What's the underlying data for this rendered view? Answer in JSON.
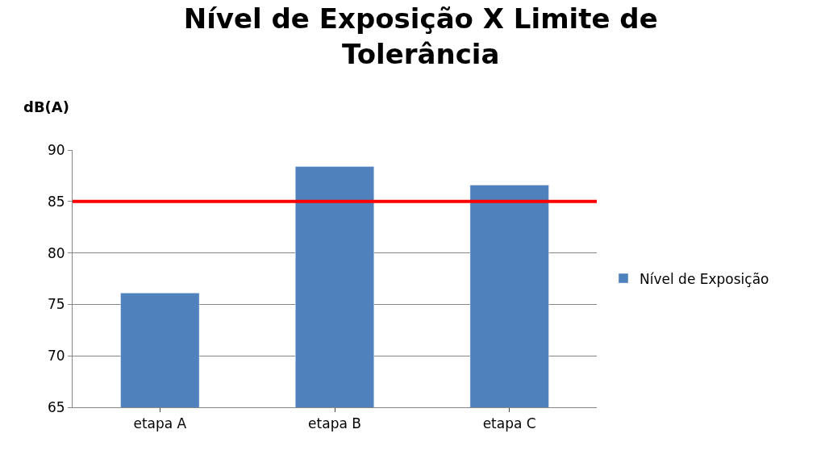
{
  "chart_data": {
    "type": "bar",
    "title": "Nível de Exposição X Limite de\nTolerância",
    "ylabel": "dB(A)",
    "categories": [
      "etapa A",
      "etapa B",
      "etapa C"
    ],
    "series": [
      {
        "name": "Nível de Exposição",
        "color": "#4f81bd",
        "values": [
          76.1,
          88.4,
          86.6
        ]
      }
    ],
    "ylim": [
      65,
      90
    ],
    "yticks": [
      65,
      70,
      75,
      80,
      85,
      90
    ],
    "grid": "y",
    "legend": "right",
    "ref_lines": [
      {
        "axis": "y",
        "value": 85,
        "color": "#ff0000"
      }
    ]
  }
}
